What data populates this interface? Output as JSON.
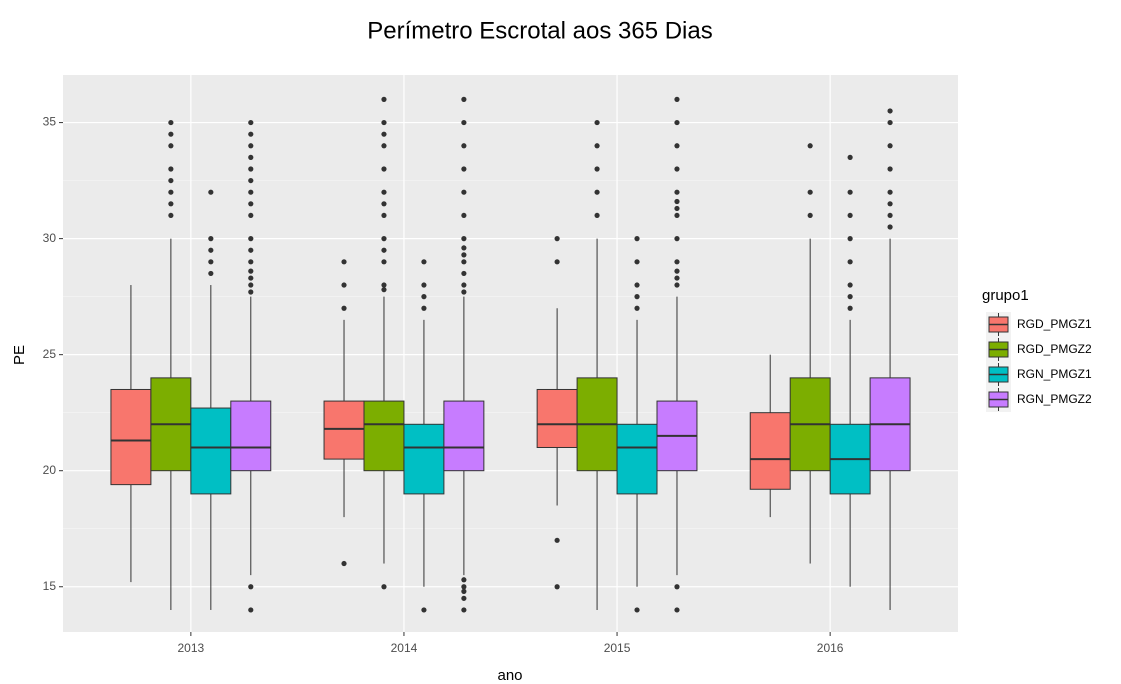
{
  "chart_data": {
    "type": "box",
    "title": "Perímetro Escrotal aos 365 Dias",
    "xlabel": "ano",
    "ylabel": "PE",
    "legend_title": "grupo1",
    "legend": "right",
    "categories": [
      "2013",
      "2014",
      "2015",
      "2016"
    ],
    "ylim": [
      13.05,
      37.05
    ],
    "yticks": [
      15,
      20,
      25,
      30,
      35
    ],
    "grid": true,
    "grid_minor": true,
    "series": [
      {
        "name": "RGD_PMGZ1",
        "color": "#F8766D",
        "boxes": [
          {
            "min": 15.2,
            "q1": 19.4,
            "median": 21.3,
            "q3": 23.5,
            "max": 28,
            "outliers": []
          },
          {
            "min": 18,
            "q1": 20.5,
            "median": 21.8,
            "q3": 23,
            "max": 26.5,
            "outliers": [
              27,
              28,
              29,
              16
            ]
          },
          {
            "min": 18.5,
            "q1": 21,
            "median": 22,
            "q3": 23.5,
            "max": 27,
            "outliers": [
              29,
              30,
              17,
              15
            ]
          },
          {
            "min": 18,
            "q1": 19.2,
            "median": 20.5,
            "q3": 22.5,
            "max": 25,
            "outliers": []
          }
        ]
      },
      {
        "name": "RGD_PMGZ2",
        "color": "#7CAE00",
        "boxes": [
          {
            "min": 14,
            "q1": 20,
            "median": 22,
            "q3": 24,
            "max": 30,
            "outliers": [
              31,
              31.5,
              32,
              32.5,
              33,
              34,
              34.5,
              35
            ]
          },
          {
            "min": 16,
            "q1": 20,
            "median": 22,
            "q3": 23,
            "max": 27.5,
            "outliers": [
              27.8,
              28,
              29,
              29.5,
              30,
              31,
              31.5,
              32,
              33,
              34,
              34.5,
              35,
              36,
              15
            ]
          },
          {
            "min": 14,
            "q1": 20,
            "median": 22,
            "q3": 24,
            "max": 30,
            "outliers": [
              31,
              32,
              33,
              34,
              35
            ]
          },
          {
            "min": 16,
            "q1": 20,
            "median": 22,
            "q3": 24,
            "max": 30,
            "outliers": [
              31,
              32,
              34
            ]
          }
        ]
      },
      {
        "name": "RGN_PMGZ1",
        "color": "#00BFC4",
        "boxes": [
          {
            "min": 14,
            "q1": 19,
            "median": 21,
            "q3": 22.7,
            "max": 28,
            "outliers": [
              28.5,
              29,
              29.5,
              30,
              32
            ]
          },
          {
            "min": 15,
            "q1": 19,
            "median": 21,
            "q3": 22,
            "max": 26.5,
            "outliers": [
              27,
              27.5,
              28,
              29,
              14
            ]
          },
          {
            "min": 15,
            "q1": 19,
            "median": 21,
            "q3": 22,
            "max": 26.5,
            "outliers": [
              27,
              27.5,
              28,
              29,
              30,
              14
            ]
          },
          {
            "min": 15,
            "q1": 19,
            "median": 20.5,
            "q3": 22,
            "max": 26.5,
            "outliers": [
              27,
              27.5,
              28,
              29,
              30,
              31,
              32,
              33.5
            ]
          }
        ]
      },
      {
        "name": "RGN_PMGZ2",
        "color": "#C77CFF",
        "boxes": [
          {
            "min": 15.5,
            "q1": 20,
            "median": 21,
            "q3": 23,
            "max": 27.5,
            "outliers": [
              27.7,
              28,
              28.3,
              28.6,
              29,
              29.5,
              30,
              31,
              31.5,
              32,
              32.5,
              33,
              33.5,
              34,
              34.5,
              35,
              15,
              14
            ]
          },
          {
            "min": 15.5,
            "q1": 20,
            "median": 21,
            "q3": 23,
            "max": 27.5,
            "outliers": [
              27.7,
              28,
              28.5,
              29,
              29.3,
              29.6,
              30,
              31,
              32,
              33,
              34,
              35,
              36,
              15.3,
              15,
              14.8,
              14.5,
              14
            ]
          },
          {
            "min": 15.5,
            "q1": 20,
            "median": 21.5,
            "q3": 23,
            "max": 27.5,
            "outliers": [
              28,
              28.3,
              28.6,
              29,
              30,
              31,
              31.3,
              31.6,
              32,
              33,
              34,
              35,
              36,
              15,
              14
            ]
          },
          {
            "min": 14,
            "q1": 20,
            "median": 22,
            "q3": 24,
            "max": 30,
            "outliers": [
              30.5,
              31,
              31.5,
              32,
              33,
              34,
              35,
              35.5
            ]
          }
        ]
      }
    ]
  }
}
